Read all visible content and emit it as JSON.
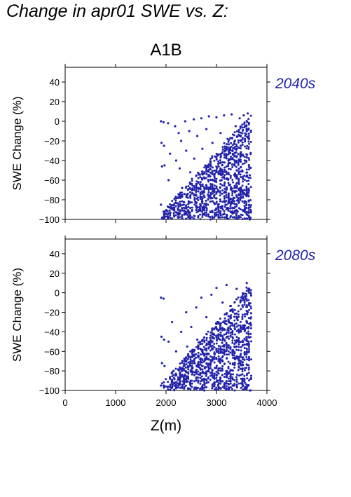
{
  "page_title": "Change in apr01 SWE vs. Z:",
  "chart_data": {
    "type": "scatter",
    "scenario": "A1B",
    "xlabel": "Z(m)",
    "xlim": [
      0,
      4000
    ],
    "xticks": [
      0,
      1000,
      2000,
      3000,
      4000
    ],
    "ylim": [
      -100,
      55
    ],
    "yticks": [
      -100,
      -80,
      -60,
      -40,
      -20,
      0,
      20,
      40
    ],
    "ylabel": "SWE Change (%)",
    "point_color": "#2222aa",
    "grid": false,
    "panels": [
      {
        "label": "2040s",
        "x_range_of_points": [
          1880,
          3680
        ],
        "y_range_of_points": [
          -100,
          8
        ],
        "points": [
          [
            1900,
            0
          ],
          [
            1950,
            -1
          ],
          [
            1910,
            -22
          ],
          [
            1960,
            -25
          ],
          [
            1920,
            -46
          ],
          [
            1970,
            -45
          ],
          [
            1900,
            -85
          ],
          [
            1950,
            -92
          ],
          [
            2040,
            -2
          ],
          [
            2080,
            -33
          ],
          [
            2050,
            -60
          ],
          [
            2090,
            -88
          ],
          [
            2180,
            -5
          ],
          [
            2200,
            -40
          ],
          [
            2190,
            -78
          ],
          [
            2250,
            -12
          ],
          [
            2270,
            -48
          ],
          [
            2260,
            -95
          ],
          [
            2300,
            -20
          ],
          [
            2320,
            -68
          ],
          [
            2380,
            0
          ],
          [
            2400,
            -30
          ],
          [
            2420,
            -75
          ],
          [
            2460,
            -10
          ],
          [
            2480,
            -52
          ],
          [
            2470,
            -98
          ],
          [
            2550,
            2
          ],
          [
            2560,
            -38
          ],
          [
            2580,
            -82
          ],
          [
            2620,
            -15
          ],
          [
            2640,
            -62
          ],
          [
            2700,
            3
          ],
          [
            2720,
            -28
          ],
          [
            2740,
            -90
          ],
          [
            2780,
            -45
          ],
          [
            2800,
            -8
          ],
          [
            2850,
            5
          ],
          [
            2860,
            -55
          ],
          [
            2880,
            -100
          ],
          [
            2920,
            -22
          ],
          [
            2950,
            -70
          ],
          [
            3000,
            4
          ],
          [
            3020,
            -35
          ],
          [
            3040,
            -95
          ],
          [
            3080,
            -12
          ],
          [
            3100,
            -60
          ],
          [
            3150,
            6
          ],
          [
            3160,
            -42
          ],
          [
            3180,
            -85
          ],
          [
            3220,
            -18
          ],
          [
            3250,
            -65
          ],
          [
            3300,
            7
          ],
          [
            3320,
            -30
          ],
          [
            3340,
            -78
          ],
          [
            3380,
            -5
          ],
          [
            3400,
            -50
          ],
          [
            3420,
            -92
          ],
          [
            3460,
            3
          ],
          [
            3480,
            -25
          ],
          [
            3500,
            -70
          ],
          [
            3540,
            6
          ],
          [
            3560,
            -40
          ],
          [
            3580,
            -88
          ],
          [
            3620,
            8
          ],
          [
            3640,
            -15
          ],
          [
            3660,
            -55
          ],
          [
            3660,
            -100
          ]
        ]
      },
      {
        "label": "2080s",
        "x_range_of_points": [
          1880,
          3680
        ],
        "y_range_of_points": [
          -100,
          10
        ],
        "points": [
          [
            1900,
            -5
          ],
          [
            1950,
            -6
          ],
          [
            1910,
            -45
          ],
          [
            1960,
            -48
          ],
          [
            1920,
            -72
          ],
          [
            1970,
            -75
          ],
          [
            1900,
            -95
          ],
          [
            2050,
            -50
          ],
          [
            2080,
            -88
          ],
          [
            2120,
            -30
          ],
          [
            2150,
            -80
          ],
          [
            2200,
            -60
          ],
          [
            2250,
            -95
          ],
          [
            2300,
            -40
          ],
          [
            2350,
            -75
          ],
          [
            2400,
            -20
          ],
          [
            2420,
            -55
          ],
          [
            2450,
            -98
          ],
          [
            2500,
            -35
          ],
          [
            2520,
            -70
          ],
          [
            2600,
            -15
          ],
          [
            2620,
            -48
          ],
          [
            2640,
            -90
          ],
          [
            2700,
            -5
          ],
          [
            2720,
            -60
          ],
          [
            2760,
            -100
          ],
          [
            2800,
            -25
          ],
          [
            2830,
            -75
          ],
          [
            2900,
            -2
          ],
          [
            2920,
            -45
          ],
          [
            2960,
            -88
          ],
          [
            3000,
            5
          ],
          [
            3020,
            -30
          ],
          [
            3050,
            -68
          ],
          [
            3080,
            -98
          ],
          [
            3120,
            -10
          ],
          [
            3150,
            -55
          ],
          [
            3200,
            8
          ],
          [
            3220,
            -38
          ],
          [
            3250,
            -82
          ],
          [
            3300,
            -18
          ],
          [
            3320,
            -62
          ],
          [
            3350,
            -95
          ],
          [
            3400,
            4
          ],
          [
            3420,
            -28
          ],
          [
            3450,
            -72
          ],
          [
            3500,
            -5
          ],
          [
            3520,
            -50
          ],
          [
            3550,
            -90
          ],
          [
            3600,
            10
          ],
          [
            3620,
            -20
          ],
          [
            3640,
            -60
          ],
          [
            3660,
            -100
          ]
        ]
      }
    ]
  }
}
